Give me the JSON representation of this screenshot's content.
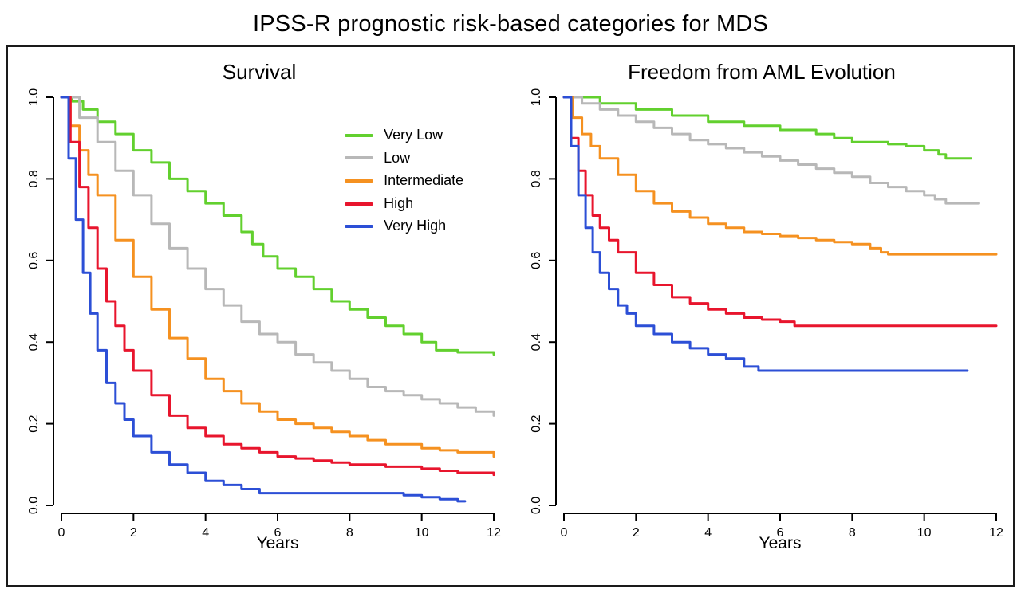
{
  "page": {
    "title": "IPSS-R prognostic risk-based categories for MDS"
  },
  "colors": {
    "very_low": "#62d02e",
    "low": "#b8b8b8",
    "intermediate": "#f59120",
    "high": "#e8152d",
    "very_high": "#2c4fd6",
    "axis": "#000000",
    "border": "#1a1a1a"
  },
  "legend": {
    "items": [
      {
        "label": "Very Low",
        "color": "#62d02e"
      },
      {
        "label": "Low",
        "color": "#b8b8b8"
      },
      {
        "label": "Intermediate",
        "color": "#f59120"
      },
      {
        "label": "High",
        "color": "#e8152d"
      },
      {
        "label": "Very High",
        "color": "#2c4fd6"
      }
    ]
  },
  "chart_data": [
    {
      "type": "line",
      "subtype": "kaplan-meier-step",
      "title": "Survival",
      "xlabel": "Years",
      "ylabel": "",
      "xlim": [
        0,
        12
      ],
      "ylim": [
        0,
        1
      ],
      "xticks": [
        0,
        2,
        4,
        6,
        8,
        10,
        12
      ],
      "yticks": [
        0.0,
        0.2,
        0.4,
        0.6,
        0.8,
        1.0
      ],
      "legend_position": "top-right",
      "grid": false,
      "series": [
        {
          "name": "Very Low",
          "color": "#62d02e",
          "points": [
            [
              0,
              1.0
            ],
            [
              0.3,
              0.99
            ],
            [
              0.6,
              0.97
            ],
            [
              1,
              0.94
            ],
            [
              1.5,
              0.91
            ],
            [
              2,
              0.87
            ],
            [
              2.5,
              0.84
            ],
            [
              3,
              0.8
            ],
            [
              3.5,
              0.77
            ],
            [
              4,
              0.74
            ],
            [
              4.5,
              0.71
            ],
            [
              5,
              0.67
            ],
            [
              5.3,
              0.64
            ],
            [
              5.6,
              0.61
            ],
            [
              6,
              0.58
            ],
            [
              6.5,
              0.56
            ],
            [
              7,
              0.53
            ],
            [
              7.5,
              0.5
            ],
            [
              8,
              0.48
            ],
            [
              8.5,
              0.46
            ],
            [
              9,
              0.44
            ],
            [
              9.5,
              0.42
            ],
            [
              10,
              0.4
            ],
            [
              10.4,
              0.38
            ],
            [
              11,
              0.375
            ],
            [
              12,
              0.37
            ]
          ]
        },
        {
          "name": "Low",
          "color": "#b8b8b8",
          "points": [
            [
              0,
              1.0
            ],
            [
              0.5,
              0.95
            ],
            [
              1,
              0.89
            ],
            [
              1.5,
              0.82
            ],
            [
              2,
              0.76
            ],
            [
              2.5,
              0.69
            ],
            [
              3,
              0.63
            ],
            [
              3.5,
              0.58
            ],
            [
              4,
              0.53
            ],
            [
              4.5,
              0.49
            ],
            [
              5,
              0.45
            ],
            [
              5.5,
              0.42
            ],
            [
              6,
              0.4
            ],
            [
              6.5,
              0.37
            ],
            [
              7,
              0.35
            ],
            [
              7.5,
              0.33
            ],
            [
              8,
              0.31
            ],
            [
              8.5,
              0.29
            ],
            [
              9,
              0.28
            ],
            [
              9.5,
              0.27
            ],
            [
              10,
              0.26
            ],
            [
              10.5,
              0.25
            ],
            [
              11,
              0.24
            ],
            [
              11.5,
              0.23
            ],
            [
              12,
              0.22
            ]
          ]
        },
        {
          "name": "Intermediate",
          "color": "#f59120",
          "points": [
            [
              0,
              1.0
            ],
            [
              0.25,
              0.93
            ],
            [
              0.5,
              0.87
            ],
            [
              0.75,
              0.81
            ],
            [
              1,
              0.76
            ],
            [
              1.5,
              0.65
            ],
            [
              2,
              0.56
            ],
            [
              2.5,
              0.48
            ],
            [
              3,
              0.41
            ],
            [
              3.5,
              0.36
            ],
            [
              4,
              0.31
            ],
            [
              4.5,
              0.28
            ],
            [
              5,
              0.25
            ],
            [
              5.5,
              0.23
            ],
            [
              6,
              0.21
            ],
            [
              6.5,
              0.2
            ],
            [
              7,
              0.19
            ],
            [
              7.5,
              0.18
            ],
            [
              8,
              0.17
            ],
            [
              8.5,
              0.16
            ],
            [
              9,
              0.15
            ],
            [
              10,
              0.14
            ],
            [
              10.5,
              0.135
            ],
            [
              11,
              0.13
            ],
            [
              12,
              0.12
            ]
          ]
        },
        {
          "name": "High",
          "color": "#e8152d",
          "points": [
            [
              0,
              1.0
            ],
            [
              0.25,
              0.89
            ],
            [
              0.5,
              0.78
            ],
            [
              0.75,
              0.68
            ],
            [
              1,
              0.58
            ],
            [
              1.25,
              0.5
            ],
            [
              1.5,
              0.44
            ],
            [
              1.75,
              0.38
            ],
            [
              2,
              0.33
            ],
            [
              2.5,
              0.27
            ],
            [
              3,
              0.22
            ],
            [
              3.5,
              0.19
            ],
            [
              4,
              0.17
            ],
            [
              4.5,
              0.15
            ],
            [
              5,
              0.14
            ],
            [
              5.5,
              0.13
            ],
            [
              6,
              0.12
            ],
            [
              6.5,
              0.115
            ],
            [
              7,
              0.11
            ],
            [
              7.5,
              0.105
            ],
            [
              8,
              0.1
            ],
            [
              9,
              0.095
            ],
            [
              10,
              0.09
            ],
            [
              10.5,
              0.085
            ],
            [
              11,
              0.08
            ],
            [
              12,
              0.075
            ]
          ]
        },
        {
          "name": "Very High",
          "color": "#2c4fd6",
          "points": [
            [
              0,
              1.0
            ],
            [
              0.2,
              0.85
            ],
            [
              0.4,
              0.7
            ],
            [
              0.6,
              0.57
            ],
            [
              0.8,
              0.47
            ],
            [
              1,
              0.38
            ],
            [
              1.25,
              0.3
            ],
            [
              1.5,
              0.25
            ],
            [
              1.75,
              0.21
            ],
            [
              2,
              0.17
            ],
            [
              2.5,
              0.13
            ],
            [
              3,
              0.1
            ],
            [
              3.5,
              0.08
            ],
            [
              4,
              0.06
            ],
            [
              4.5,
              0.05
            ],
            [
              5,
              0.04
            ],
            [
              5.5,
              0.03
            ],
            [
              7,
              0.03
            ],
            [
              9,
              0.03
            ],
            [
              9.5,
              0.025
            ],
            [
              10,
              0.02
            ],
            [
              10.5,
              0.015
            ],
            [
              11,
              0.01
            ],
            [
              11.2,
              0.01
            ]
          ]
        }
      ]
    },
    {
      "type": "line",
      "subtype": "kaplan-meier-step",
      "title": "Freedom from AML Evolution",
      "xlabel": "Years",
      "ylabel": "",
      "xlim": [
        0,
        12
      ],
      "ylim": [
        0,
        1
      ],
      "xticks": [
        0,
        2,
        4,
        6,
        8,
        10,
        12
      ],
      "yticks": [
        0.0,
        0.2,
        0.4,
        0.6,
        0.8,
        1.0
      ],
      "legend_position": "none",
      "grid": false,
      "series": [
        {
          "name": "Very Low",
          "color": "#62d02e",
          "points": [
            [
              0,
              1.0
            ],
            [
              1,
              0.985
            ],
            [
              2,
              0.97
            ],
            [
              3,
              0.955
            ],
            [
              4,
              0.94
            ],
            [
              5,
              0.93
            ],
            [
              6,
              0.92
            ],
            [
              7,
              0.91
            ],
            [
              7.5,
              0.9
            ],
            [
              8,
              0.89
            ],
            [
              9,
              0.885
            ],
            [
              9.5,
              0.88
            ],
            [
              10,
              0.87
            ],
            [
              10.4,
              0.86
            ],
            [
              10.6,
              0.85
            ],
            [
              11.3,
              0.85
            ]
          ]
        },
        {
          "name": "Low",
          "color": "#b8b8b8",
          "points": [
            [
              0,
              1.0
            ],
            [
              0.5,
              0.985
            ],
            [
              1,
              0.97
            ],
            [
              1.5,
              0.955
            ],
            [
              2,
              0.94
            ],
            [
              2.5,
              0.925
            ],
            [
              3,
              0.91
            ],
            [
              3.5,
              0.895
            ],
            [
              4,
              0.885
            ],
            [
              4.5,
              0.875
            ],
            [
              5,
              0.865
            ],
            [
              5.5,
              0.855
            ],
            [
              6,
              0.845
            ],
            [
              6.5,
              0.835
            ],
            [
              7,
              0.825
            ],
            [
              7.5,
              0.815
            ],
            [
              8,
              0.805
            ],
            [
              8.5,
              0.79
            ],
            [
              9,
              0.78
            ],
            [
              9.5,
              0.77
            ],
            [
              10,
              0.76
            ],
            [
              10.3,
              0.75
            ],
            [
              10.6,
              0.74
            ],
            [
              11.5,
              0.74
            ]
          ]
        },
        {
          "name": "Intermediate",
          "color": "#f59120",
          "points": [
            [
              0,
              1.0
            ],
            [
              0.25,
              0.95
            ],
            [
              0.5,
              0.91
            ],
            [
              0.75,
              0.88
            ],
            [
              1,
              0.85
            ],
            [
              1.5,
              0.81
            ],
            [
              2,
              0.77
            ],
            [
              2.5,
              0.74
            ],
            [
              3,
              0.72
            ],
            [
              3.5,
              0.705
            ],
            [
              4,
              0.69
            ],
            [
              4.5,
              0.68
            ],
            [
              5,
              0.67
            ],
            [
              5.5,
              0.665
            ],
            [
              6,
              0.66
            ],
            [
              6.5,
              0.655
            ],
            [
              7,
              0.65
            ],
            [
              7.5,
              0.645
            ],
            [
              8,
              0.64
            ],
            [
              8.5,
              0.63
            ],
            [
              8.8,
              0.62
            ],
            [
              9,
              0.615
            ],
            [
              10,
              0.615
            ],
            [
              11,
              0.615
            ],
            [
              12,
              0.615
            ]
          ]
        },
        {
          "name": "High",
          "color": "#e8152d",
          "points": [
            [
              0,
              1.0
            ],
            [
              0.2,
              0.9
            ],
            [
              0.4,
              0.82
            ],
            [
              0.6,
              0.76
            ],
            [
              0.8,
              0.71
            ],
            [
              1,
              0.68
            ],
            [
              1.25,
              0.65
            ],
            [
              1.5,
              0.62
            ],
            [
              2,
              0.57
            ],
            [
              2.5,
              0.54
            ],
            [
              3,
              0.51
            ],
            [
              3.5,
              0.495
            ],
            [
              4,
              0.48
            ],
            [
              4.5,
              0.47
            ],
            [
              5,
              0.46
            ],
            [
              5.5,
              0.455
            ],
            [
              6,
              0.45
            ],
            [
              6.4,
              0.44
            ],
            [
              7,
              0.44
            ],
            [
              8,
              0.44
            ],
            [
              9,
              0.44
            ],
            [
              10,
              0.44
            ],
            [
              11,
              0.44
            ],
            [
              12,
              0.44
            ]
          ]
        },
        {
          "name": "Very High",
          "color": "#2c4fd6",
          "points": [
            [
              0,
              1.0
            ],
            [
              0.2,
              0.88
            ],
            [
              0.4,
              0.76
            ],
            [
              0.6,
              0.68
            ],
            [
              0.8,
              0.62
            ],
            [
              1,
              0.57
            ],
            [
              1.25,
              0.53
            ],
            [
              1.5,
              0.49
            ],
            [
              1.75,
              0.47
            ],
            [
              2,
              0.44
            ],
            [
              2.5,
              0.42
            ],
            [
              3,
              0.4
            ],
            [
              3.5,
              0.385
            ],
            [
              4,
              0.37
            ],
            [
              4.5,
              0.36
            ],
            [
              5,
              0.34
            ],
            [
              5.4,
              0.33
            ],
            [
              6,
              0.33
            ],
            [
              7,
              0.33
            ],
            [
              8,
              0.33
            ],
            [
              9,
              0.33
            ],
            [
              10,
              0.33
            ],
            [
              11.2,
              0.33
            ]
          ]
        }
      ]
    }
  ]
}
